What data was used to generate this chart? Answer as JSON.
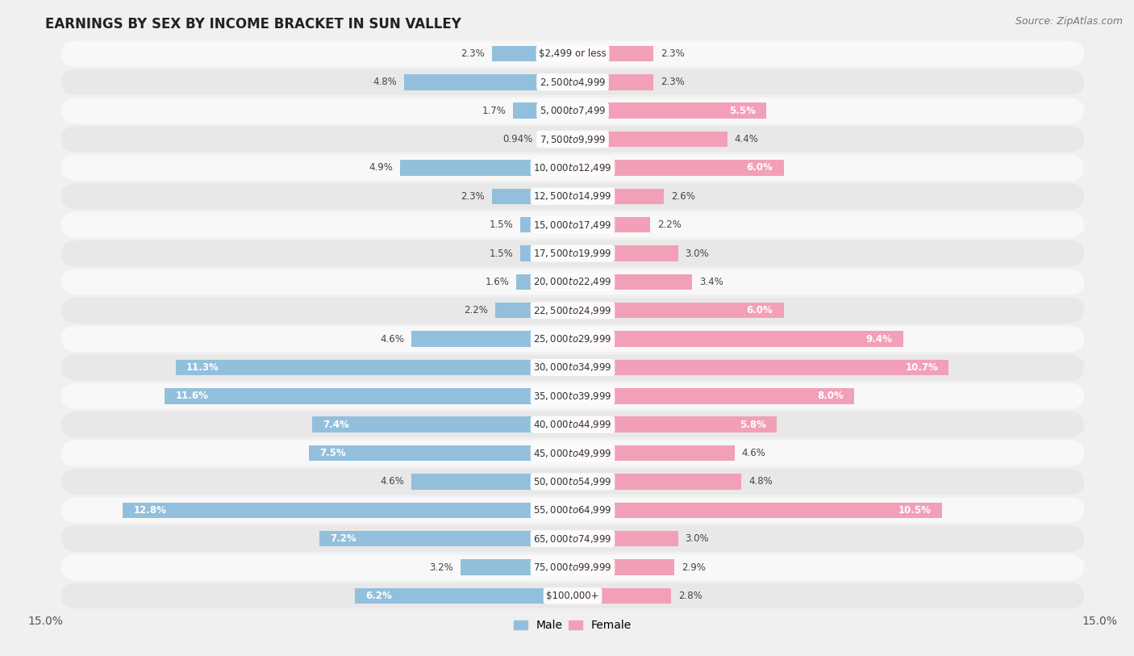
{
  "title": "EARNINGS BY SEX BY INCOME BRACKET IN SUN VALLEY",
  "source": "Source: ZipAtlas.com",
  "categories": [
    "$2,499 or less",
    "$2,500 to $4,999",
    "$5,000 to $7,499",
    "$7,500 to $9,999",
    "$10,000 to $12,499",
    "$12,500 to $14,999",
    "$15,000 to $17,499",
    "$17,500 to $19,999",
    "$20,000 to $22,499",
    "$22,500 to $24,999",
    "$25,000 to $29,999",
    "$30,000 to $34,999",
    "$35,000 to $39,999",
    "$40,000 to $44,999",
    "$45,000 to $49,999",
    "$50,000 to $54,999",
    "$55,000 to $64,999",
    "$65,000 to $74,999",
    "$75,000 to $99,999",
    "$100,000+"
  ],
  "male": [
    2.3,
    4.8,
    1.7,
    0.94,
    4.9,
    2.3,
    1.5,
    1.5,
    1.6,
    2.2,
    4.6,
    11.3,
    11.6,
    7.4,
    7.5,
    4.6,
    12.8,
    7.2,
    3.2,
    6.2
  ],
  "female": [
    2.3,
    2.3,
    5.5,
    4.4,
    6.0,
    2.6,
    2.2,
    3.0,
    3.4,
    6.0,
    9.4,
    10.7,
    8.0,
    5.8,
    4.6,
    4.8,
    10.5,
    3.0,
    2.9,
    2.8
  ],
  "male_color": "#92c0dc",
  "female_color": "#f2a0b8",
  "bg_color": "#f0f0f0",
  "row_color_light": "#e8e8e8",
  "row_color_white": "#f8f8f8",
  "xlim": 15.0,
  "bar_height": 0.55,
  "label_threshold": 5.0
}
